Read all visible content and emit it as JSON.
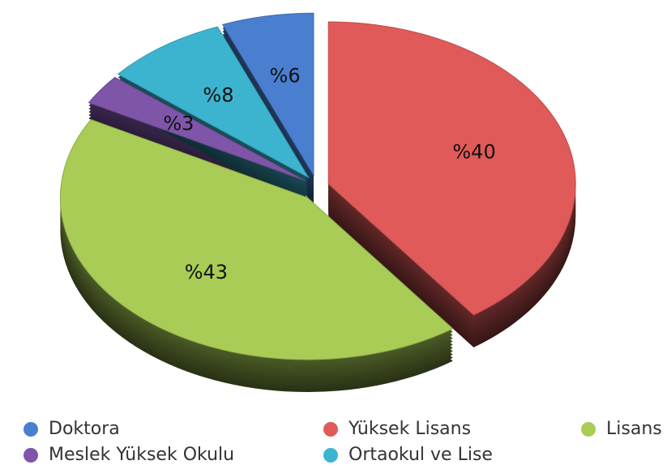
{
  "chart_data": {
    "type": "pie",
    "categories": [
      "Doktora",
      "Yüksek Lisans",
      "Lisans",
      "Meslek Yüksek Okulu",
      "Ortaokul ve Lise"
    ],
    "values": [
      6,
      40,
      43,
      3,
      8
    ],
    "value_labels": [
      "%6",
      "%40",
      "%43",
      "%3",
      "%8"
    ],
    "colors": [
      "#4a7fcf",
      "#e05a5a",
      "#a8cc55",
      "#7e55a8",
      "#3cb4cf"
    ],
    "legend": "bottom"
  }
}
